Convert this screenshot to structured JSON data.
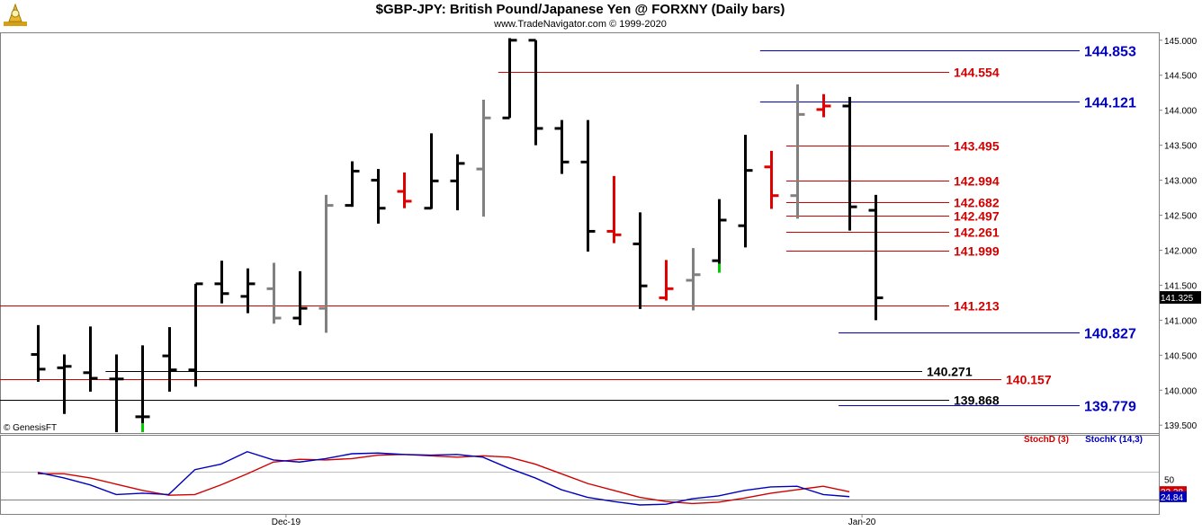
{
  "header": {
    "title": "$GBP-JPY:  British Pound/Japanese Yen @ FORXNY  (Daily bars)",
    "subtitle": "www.TradeNavigator.com © 1999-2020",
    "credit": "© GenesisFT"
  },
  "colors": {
    "up_bar": "#000000",
    "neutral_bar": "#808080",
    "red_bar": "#e00000",
    "green_tick": "#00cc00",
    "level_red": "#d00000",
    "level_blue": "#0000c0",
    "level_black": "#000000",
    "stoch_d": "#d00000",
    "stoch_k": "#0000c0",
    "last_price_bg": "#000000"
  },
  "chart_data": [
    {
      "type": "ohlc",
      "symbol": "$GBP-JPY",
      "ylim": [
        139.4,
        145.1
      ],
      "y_ticks": [
        "145.000",
        "144.500",
        "144.000",
        "143.500",
        "143.000",
        "142.500",
        "142.000",
        "141.500",
        "141.000",
        "140.500",
        "140.000",
        "139.500"
      ],
      "x_labels": [
        {
          "label": "Dec-19",
          "index": 9
        },
        {
          "label": "Jan-20",
          "index": 31
        }
      ],
      "last_price": "141.325",
      "bars": [
        {
          "o": 140.51,
          "h": 140.93,
          "l": 140.12,
          "c": 140.3,
          "color": "black"
        },
        {
          "o": 140.32,
          "h": 140.51,
          "l": 139.66,
          "c": 140.34,
          "color": "black"
        },
        {
          "o": 140.25,
          "h": 140.91,
          "l": 139.98,
          "c": 140.17,
          "color": "black"
        },
        {
          "o": 140.16,
          "h": 140.51,
          "l": 139.4,
          "c": 140.16,
          "color": "black"
        },
        {
          "o": 139.62,
          "h": 140.64,
          "l": 139.4,
          "c": 139.62,
          "color": "black",
          "low_tick": "green"
        },
        {
          "o": 140.49,
          "h": 140.9,
          "l": 139.98,
          "c": 140.29,
          "color": "black"
        },
        {
          "o": 140.29,
          "h": 141.52,
          "l": 140.05,
          "c": 141.52,
          "color": "black"
        },
        {
          "o": 141.52,
          "h": 141.85,
          "l": 141.24,
          "c": 141.38,
          "color": "black"
        },
        {
          "o": 141.34,
          "h": 141.74,
          "l": 141.1,
          "c": 141.52,
          "color": "black"
        },
        {
          "o": 141.45,
          "h": 141.82,
          "l": 140.95,
          "c": 141.03,
          "color": "gray"
        },
        {
          "o": 141.03,
          "h": 141.7,
          "l": 140.93,
          "c": 141.17,
          "color": "black"
        },
        {
          "o": 141.17,
          "h": 142.79,
          "l": 140.82,
          "c": 142.64,
          "color": "gray"
        },
        {
          "o": 142.64,
          "h": 143.27,
          "l": 142.62,
          "c": 143.13,
          "color": "black"
        },
        {
          "o": 143.0,
          "h": 143.16,
          "l": 142.38,
          "c": 142.6,
          "color": "black"
        },
        {
          "o": 142.84,
          "h": 143.11,
          "l": 142.6,
          "c": 142.7,
          "color": "red"
        },
        {
          "o": 142.6,
          "h": 143.67,
          "l": 142.59,
          "c": 142.99,
          "color": "black"
        },
        {
          "o": 142.99,
          "h": 143.37,
          "l": 142.57,
          "c": 143.24,
          "color": "black"
        },
        {
          "o": 143.16,
          "h": 144.15,
          "l": 142.48,
          "c": 143.89,
          "color": "gray"
        },
        {
          "o": 143.89,
          "h": 145.03,
          "l": 143.89,
          "c": 145.0,
          "color": "black"
        },
        {
          "o": 145.0,
          "h": 145.0,
          "l": 143.5,
          "c": 143.74,
          "color": "black"
        },
        {
          "o": 143.74,
          "h": 143.86,
          "l": 143.09,
          "c": 143.26,
          "color": "black"
        },
        {
          "o": 143.26,
          "h": 143.86,
          "l": 141.98,
          "c": 142.27,
          "color": "black"
        },
        {
          "o": 142.27,
          "h": 143.06,
          "l": 142.1,
          "c": 142.22,
          "color": "red"
        },
        {
          "o": 142.09,
          "h": 142.54,
          "l": 141.16,
          "c": 141.49,
          "color": "black"
        },
        {
          "o": 141.32,
          "h": 141.86,
          "l": 141.28,
          "c": 141.45,
          "color": "red"
        },
        {
          "o": 141.57,
          "h": 142.03,
          "l": 141.14,
          "c": 141.65,
          "color": "gray"
        },
        {
          "o": 141.85,
          "h": 142.73,
          "l": 141.68,
          "c": 142.43,
          "color": "black",
          "low_tick": "green"
        },
        {
          "o": 142.35,
          "h": 143.65,
          "l": 142.04,
          "c": 143.14,
          "color": "black"
        },
        {
          "o": 143.19,
          "h": 143.42,
          "l": 142.59,
          "c": 142.78,
          "color": "red"
        },
        {
          "o": 142.78,
          "h": 144.37,
          "l": 142.45,
          "c": 143.94,
          "color": "gray"
        },
        {
          "o": 144.01,
          "h": 144.23,
          "l": 143.9,
          "c": 144.06,
          "color": "red"
        },
        {
          "o": 144.06,
          "h": 144.19,
          "l": 142.28,
          "c": 142.62,
          "color": "black"
        },
        {
          "o": 142.57,
          "h": 142.79,
          "l": 141.0,
          "c": 141.32,
          "color": "black"
        }
      ],
      "levels": [
        {
          "label": "144.853",
          "value": 144.853,
          "color": "blue",
          "from_bar": 28,
          "bold": true
        },
        {
          "label": "144.554",
          "value": 144.554,
          "color": "red",
          "from_bar": 18
        },
        {
          "label": "144.121",
          "value": 144.121,
          "color": "blue",
          "from_bar": 28,
          "bold": true
        },
        {
          "label": "143.495",
          "value": 143.495,
          "color": "red",
          "from_bar": 29
        },
        {
          "label": "142.994",
          "value": 142.994,
          "color": "red",
          "from_bar": 29
        },
        {
          "label": "142.682",
          "value": 142.682,
          "color": "red",
          "from_bar": 29
        },
        {
          "label": "142.497",
          "value": 142.497,
          "color": "red",
          "from_bar": 29
        },
        {
          "label": "142.261",
          "value": 142.261,
          "color": "red",
          "from_bar": 29
        },
        {
          "label": "141.999",
          "value": 141.999,
          "color": "red",
          "from_bar": 29
        },
        {
          "label": "141.213",
          "value": 141.213,
          "color": "red",
          "from_bar": 0
        },
        {
          "label": "140.827",
          "value": 140.827,
          "color": "blue",
          "from_bar": 31,
          "bold": true
        },
        {
          "label": "140.271",
          "value": 140.271,
          "color": "black",
          "from_bar": 3
        },
        {
          "label": "140.157",
          "value": 140.157,
          "color": "red",
          "from_bar": 0
        },
        {
          "label": "139.868",
          "value": 139.868,
          "color": "black",
          "from_bar": 0
        },
        {
          "label": "139.779",
          "value": 139.779,
          "color": "blue",
          "from_bar": 31,
          "bold": true
        }
      ]
    },
    {
      "type": "line",
      "ylim": [
        0,
        100
      ],
      "y_ticks": [
        "50"
      ],
      "last_values": [
        "32.28",
        "24.84"
      ],
      "series": [
        {
          "name": "StochD (3)",
          "color": "red",
          "values": [
            58,
            58,
            52,
            43,
            34,
            27,
            28,
            42,
            58,
            75,
            79,
            78,
            80,
            85,
            86,
            84,
            82,
            84,
            82,
            72,
            58,
            44,
            34,
            24,
            18,
            15,
            17,
            23,
            30,
            35,
            40,
            32
          ]
        },
        {
          "name": "StochK (14,3)",
          "color": "blue",
          "values": [
            60,
            52,
            42,
            28,
            30,
            28,
            64,
            72,
            90,
            78,
            75,
            80,
            87,
            88,
            86,
            85,
            86,
            82,
            66,
            52,
            35,
            24,
            18,
            13,
            14,
            22,
            26,
            34,
            39,
            40,
            28,
            25
          ]
        }
      ]
    }
  ]
}
